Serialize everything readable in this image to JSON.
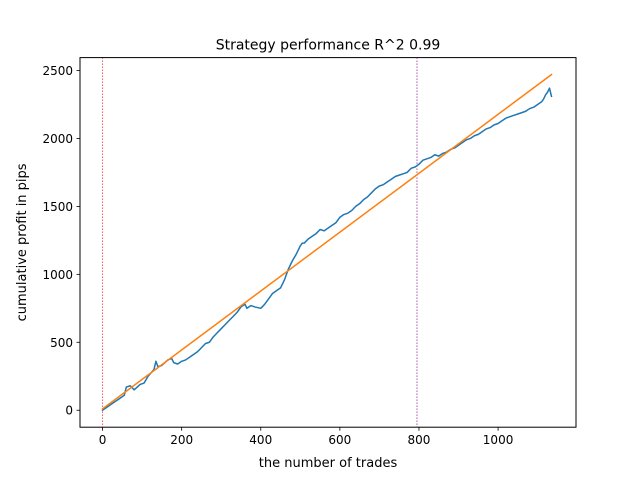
{
  "chart_data": {
    "type": "line",
    "title": "Strategy performance R^2 0.99",
    "xlabel": "the number of trades",
    "ylabel": "cumulative profit in pips",
    "xlim": [
      -57,
      1197
    ],
    "ylim": [
      -125,
      2595
    ],
    "xticks": [
      0,
      200,
      400,
      600,
      800,
      1000
    ],
    "xtick_labels": [
      "0",
      "200",
      "400",
      "600",
      "800",
      "1000"
    ],
    "yticks": [
      0,
      500,
      1000,
      1500,
      2000,
      2500
    ],
    "ytick_labels": [
      "0",
      "500",
      "1000",
      "1500",
      "2000",
      "2500"
    ],
    "grid": false,
    "legend": "none",
    "series": [
      {
        "role": "cumulative-profit",
        "color": "#1f77b4",
        "x": [
          0,
          10,
          25,
          40,
          55,
          60,
          70,
          80,
          95,
          105,
          115,
          130,
          135,
          140,
          150,
          165,
          175,
          180,
          190,
          200,
          210,
          220,
          230,
          240,
          250,
          260,
          270,
          280,
          290,
          300,
          310,
          320,
          330,
          340,
          350,
          360,
          365,
          375,
          385,
          400,
          410,
          420,
          430,
          440,
          450,
          460,
          470,
          480,
          490,
          500,
          505,
          510,
          520,
          530,
          540,
          550,
          560,
          570,
          580,
          590,
          600,
          610,
          620,
          630,
          640,
          650,
          660,
          670,
          680,
          690,
          700,
          710,
          720,
          730,
          740,
          750,
          760,
          770,
          780,
          790,
          800,
          810,
          820,
          830,
          840,
          850,
          860,
          870,
          880,
          890,
          900,
          910,
          920,
          930,
          940,
          950,
          960,
          970,
          980,
          990,
          1000,
          1010,
          1020,
          1030,
          1040,
          1050,
          1060,
          1070,
          1080,
          1090,
          1100,
          1110,
          1115,
          1120,
          1125,
          1130,
          1135
        ],
        "y": [
          0,
          20,
          50,
          80,
          110,
          170,
          180,
          150,
          190,
          200,
          250,
          300,
          360,
          320,
          330,
          370,
          380,
          350,
          340,
          360,
          370,
          390,
          410,
          430,
          460,
          490,
          500,
          540,
          570,
          600,
          630,
          660,
          690,
          720,
          760,
          780,
          750,
          770,
          760,
          750,
          780,
          820,
          860,
          880,
          900,
          960,
          1040,
          1100,
          1150,
          1210,
          1230,
          1230,
          1260,
          1280,
          1300,
          1330,
          1320,
          1340,
          1360,
          1380,
          1420,
          1440,
          1450,
          1470,
          1500,
          1520,
          1550,
          1570,
          1600,
          1630,
          1650,
          1660,
          1680,
          1700,
          1720,
          1730,
          1740,
          1750,
          1780,
          1790,
          1810,
          1840,
          1850,
          1860,
          1880,
          1870,
          1890,
          1900,
          1920,
          1930,
          1950,
          1970,
          1990,
          2000,
          2020,
          2030,
          2050,
          2070,
          2080,
          2100,
          2110,
          2130,
          2150,
          2160,
          2170,
          2180,
          2190,
          2200,
          2220,
          2230,
          2250,
          2270,
          2290,
          2320,
          2340,
          2370,
          2310
        ]
      },
      {
        "role": "linear-fit",
        "color": "#ff7f0e",
        "x": [
          0,
          1135
        ],
        "y": [
          10,
          2470
        ]
      }
    ],
    "vlines": [
      {
        "x": 0,
        "color": "#ff0000",
        "style": "dotted"
      },
      {
        "x": 795,
        "color": "#800080",
        "style": "dotted"
      }
    ]
  }
}
